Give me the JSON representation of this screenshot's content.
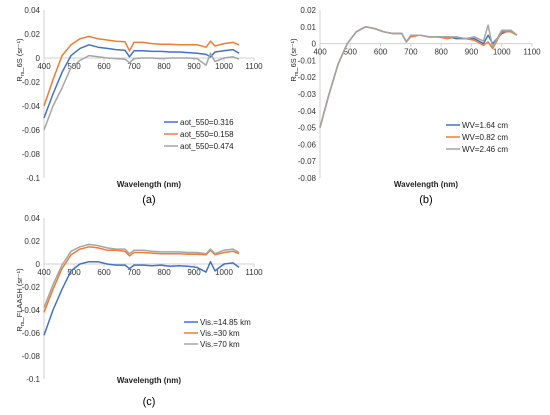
{
  "colors": {
    "blue": "#4472c4",
    "orange": "#ed7d31",
    "gray": "#a5a5a5"
  },
  "panels": [
    {
      "id": "a",
      "caption": "(a)",
      "ylabel_main": "R",
      "ylabel_sub": "rs",
      "ylabel_rest": "_6S (sr⁻¹)",
      "xlabel": "Wavelength (nm)",
      "x_ticks": [
        "400",
        "500",
        "600",
        "700",
        "800",
        "900",
        "1000",
        "1100"
      ],
      "y_ticks": [
        "0.04",
        "0.02",
        "0",
        "-0.02",
        "-0.04",
        "-0.06",
        "-0.08",
        "-0.1"
      ],
      "legend": [
        "aot_550=0.316",
        "aot_550=0.158",
        "aot_550=0.474"
      ]
    },
    {
      "id": "b",
      "caption": "(b)",
      "ylabel_main": "R",
      "ylabel_sub": "rs",
      "ylabel_rest": "_6S (sr⁻¹)",
      "xlabel": "Wavelength (nm)",
      "x_ticks": [
        "400",
        "500",
        "600",
        "700",
        "800",
        "900",
        "1000",
        "1100"
      ],
      "y_ticks": [
        "0.02",
        "0.01",
        "0",
        "-0.01",
        "-0.02",
        "-0.03",
        "-0.04",
        "-0.05",
        "-0.06",
        "-0.07",
        "-0.08"
      ],
      "legend": [
        "WV=1.64 cm",
        "WV=0.82 cm",
        "WV=2.46 cm"
      ]
    },
    {
      "id": "c",
      "caption": "(c)",
      "ylabel_main": "R",
      "ylabel_sub": "rs",
      "ylabel_rest": "_FLAASH (sr⁻¹)",
      "xlabel": "Wavelength (nm)",
      "x_ticks": [
        "400",
        "500",
        "600",
        "700",
        "800",
        "900",
        "1000",
        "1100"
      ],
      "y_ticks": [
        "0.04",
        "0.02",
        "0",
        "-0.02",
        "-0.04",
        "-0.06",
        "-0.08",
        "-0.1"
      ],
      "legend": [
        "Vis.=14.85 km",
        "Vis.=30 km",
        "Vis.=70 km"
      ]
    }
  ],
  "chart_data": [
    {
      "type": "line",
      "title": "",
      "xlabel": "Wavelength (nm)",
      "ylabel": "Rrs_6S (sr⁻¹)",
      "xlim": [
        400,
        1100
      ],
      "ylim": [
        -0.1,
        0.04
      ],
      "grid": false,
      "legend_position": "right",
      "x": [
        400,
        430,
        460,
        490,
        520,
        550,
        580,
        610,
        640,
        670,
        685,
        700,
        730,
        760,
        790,
        820,
        850,
        880,
        910,
        940,
        955,
        970,
        1000,
        1030,
        1050
      ],
      "series": [
        {
          "name": "aot_550=0.316",
          "color": "#4472c4",
          "values": [
            -0.05,
            -0.03,
            -0.012,
            0.002,
            0.008,
            0.011,
            0.009,
            0.008,
            0.007,
            0.0065,
            0.001,
            0.006,
            0.006,
            0.0055,
            0.0055,
            0.005,
            0.005,
            0.0045,
            0.004,
            0.003,
            0.001,
            0.005,
            0.006,
            0.007,
            0.004
          ]
        },
        {
          "name": "aot_550=0.158",
          "color": "#ed7d31",
          "values": [
            -0.04,
            -0.018,
            0.002,
            0.011,
            0.016,
            0.018,
            0.016,
            0.015,
            0.014,
            0.0135,
            0.006,
            0.013,
            0.013,
            0.012,
            0.0115,
            0.0115,
            0.011,
            0.011,
            0.011,
            0.009,
            0.014,
            0.01,
            0.012,
            0.013,
            0.011
          ]
        },
        {
          "name": "aot_550=0.474",
          "color": "#a5a5a5",
          "values": [
            -0.06,
            -0.04,
            -0.025,
            -0.008,
            -0.002,
            0.002,
            0.001,
            0.0,
            -0.0005,
            -0.001,
            -0.004,
            -0.0005,
            0.0,
            0.0,
            -0.0005,
            0.0,
            0.0,
            0.0,
            -0.0005,
            -0.006,
            0.004,
            -0.003,
            0.0,
            0.001,
            -0.001
          ]
        }
      ]
    },
    {
      "type": "line",
      "title": "",
      "xlabel": "Wavelength (nm)",
      "ylabel": "Rrs_6S (sr⁻¹)",
      "xlim": [
        400,
        1100
      ],
      "ylim": [
        -0.08,
        0.02
      ],
      "grid": false,
      "legend_position": "right",
      "x": [
        400,
        430,
        460,
        490,
        520,
        550,
        580,
        610,
        640,
        670,
        685,
        700,
        730,
        760,
        790,
        820,
        850,
        880,
        910,
        940,
        955,
        970,
        1000,
        1030,
        1050
      ],
      "series": [
        {
          "name": "WV=1.64 cm",
          "color": "#4472c4",
          "values": [
            -0.05,
            -0.03,
            -0.012,
            0.0,
            0.007,
            0.01,
            0.009,
            0.007,
            0.006,
            0.006,
            0.001,
            0.005,
            0.005,
            0.004,
            0.004,
            0.004,
            0.003,
            0.003,
            0.003,
            0.0,
            0.005,
            0.0,
            0.006,
            0.008,
            0.005
          ]
        },
        {
          "name": "WV=0.82 cm",
          "color": "#ed7d31",
          "values": [
            -0.05,
            -0.03,
            -0.012,
            0.0,
            0.007,
            0.01,
            0.009,
            0.007,
            0.006,
            0.006,
            0.001,
            0.004,
            0.005,
            0.004,
            0.004,
            0.003,
            0.004,
            0.003,
            0.002,
            -0.001,
            0.001,
            -0.003,
            0.007,
            0.007,
            0.005
          ]
        },
        {
          "name": "WV=2.46 cm",
          "color": "#a5a5a5",
          "values": [
            -0.05,
            -0.03,
            -0.012,
            0.0,
            0.007,
            0.01,
            0.009,
            0.007,
            0.006,
            0.006,
            0.001,
            0.005,
            0.005,
            0.004,
            0.004,
            0.004,
            0.004,
            0.003,
            0.004,
            0.0015,
            0.011,
            -0.002,
            0.008,
            0.008,
            0.005
          ]
        }
      ]
    },
    {
      "type": "line",
      "title": "",
      "xlabel": "Wavelength (nm)",
      "ylabel": "Rrs_FLAASH (sr⁻¹)",
      "xlim": [
        400,
        1100
      ],
      "ylim": [
        -0.1,
        0.04
      ],
      "grid": false,
      "legend_position": "right",
      "x": [
        400,
        430,
        460,
        490,
        520,
        550,
        580,
        610,
        640,
        670,
        685,
        700,
        730,
        760,
        790,
        820,
        850,
        880,
        910,
        940,
        955,
        970,
        1000,
        1030,
        1050
      ],
      "series": [
        {
          "name": "Vis.=14.85 km",
          "color": "#4472c4",
          "values": [
            -0.062,
            -0.04,
            -0.022,
            -0.006,
            0.0,
            0.002,
            0.002,
            0.0,
            -0.001,
            -0.001,
            -0.004,
            -0.001,
            -0.001,
            -0.0015,
            -0.001,
            -0.002,
            -0.0015,
            -0.002,
            -0.003,
            -0.007,
            0.002,
            -0.006,
            0.0,
            0.001,
            -0.003
          ]
        },
        {
          "name": "Vis.=30 km",
          "color": "#ed7d31",
          "values": [
            -0.042,
            -0.022,
            -0.004,
            0.008,
            0.013,
            0.015,
            0.014,
            0.012,
            0.012,
            0.011,
            0.007,
            0.01,
            0.01,
            0.0095,
            0.009,
            0.009,
            0.009,
            0.0085,
            0.0085,
            0.008,
            0.012,
            0.008,
            0.01,
            0.011,
            0.009
          ]
        },
        {
          "name": "Vis.=70 km",
          "color": "#a5a5a5",
          "values": [
            -0.038,
            -0.018,
            -0.001,
            0.011,
            0.015,
            0.017,
            0.016,
            0.014,
            0.013,
            0.013,
            0.009,
            0.012,
            0.012,
            0.011,
            0.0105,
            0.0105,
            0.0105,
            0.01,
            0.01,
            0.009,
            0.013,
            0.009,
            0.012,
            0.013,
            0.01
          ]
        }
      ]
    }
  ]
}
